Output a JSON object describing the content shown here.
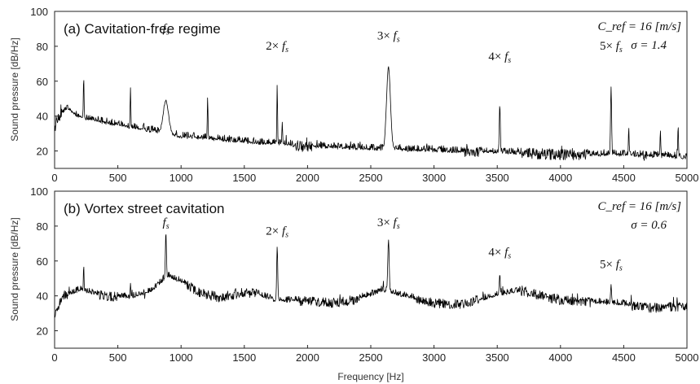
{
  "chart_data": [
    {
      "type": "line",
      "title": "(a) Cavitation-free regime",
      "xlabel": "",
      "ylabel": "Sound pressure [dB/Hz]",
      "xlim": [
        0,
        5000
      ],
      "ylim": [
        10,
        100
      ],
      "xticks": [
        0,
        500,
        1000,
        1500,
        2000,
        2500,
        3000,
        3500,
        4000,
        4500,
        5000
      ],
      "yticks": [
        20,
        40,
        60,
        80,
        100
      ],
      "grid": false,
      "legend": "none",
      "params": {
        "velocity": "C_ref = 16 [m/s]",
        "sigma": "σ = 1.4"
      },
      "annotations": [
        {
          "text": "f_s",
          "x": 880,
          "y": 88
        },
        {
          "text": "2× f_s",
          "x": 1760,
          "y": 78
        },
        {
          "text": "3× f_s",
          "x": 2640,
          "y": 84
        },
        {
          "text": "4× f_s",
          "x": 3520,
          "y": 72
        },
        {
          "text": "5× f_s",
          "x": 4400,
          "y": 78
        }
      ],
      "series": [
        {
          "color": "#000000",
          "baseline": [
            [
              0,
              33
            ],
            [
              40,
              40
            ],
            [
              100,
              44
            ],
            [
              200,
              39
            ],
            [
              400,
              36
            ],
            [
              600,
              33
            ],
            [
              800,
              31
            ],
            [
              1000,
              28
            ],
            [
              1500,
              25
            ],
            [
              2000,
              22.5
            ],
            [
              2500,
              21
            ],
            [
              3000,
              20
            ],
            [
              3500,
              19
            ],
            [
              4000,
              18
            ],
            [
              4500,
              17.5
            ],
            [
              5000,
              16
            ]
          ],
          "peaks": [
            {
              "x": 880,
              "y": 49,
              "width": 30
            },
            {
              "x": 1760,
              "y": 58,
              "width": 4
            },
            {
              "x": 2640,
              "y": 68,
              "width": 22
            },
            {
              "x": 3520,
              "y": 47,
              "width": 6
            },
            {
              "x": 4400,
              "y": 56,
              "width": 6
            },
            {
              "x": 230,
              "y": 62,
              "width": 4
            },
            {
              "x": 600,
              "y": 56,
              "width": 4
            },
            {
              "x": 1210,
              "y": 51,
              "width": 4
            },
            {
              "x": 1800,
              "y": 37,
              "width": 4
            },
            {
              "x": 4540,
              "y": 34,
              "width": 4
            },
            {
              "x": 4790,
              "y": 32,
              "width": 4
            },
            {
              "x": 4930,
              "y": 35,
              "width": 4
            }
          ],
          "noise_amplitude": 3.2
        }
      ]
    },
    {
      "type": "line",
      "title": "(b) Vortex street cavitation",
      "xlabel": "Frequency [Hz]",
      "ylabel": "Sound pressure [dB/Hz]",
      "xlim": [
        0,
        5000
      ],
      "ylim": [
        10,
        100
      ],
      "xticks": [
        0,
        500,
        1000,
        1500,
        2000,
        2500,
        3000,
        3500,
        4000,
        4500,
        5000
      ],
      "yticks": [
        20,
        40,
        60,
        80,
        100
      ],
      "grid": false,
      "legend": "none",
      "params": {
        "velocity": "C_ref = 16 [m/s]",
        "sigma": "σ = 0.6"
      },
      "annotations": [
        {
          "text": "f_s",
          "x": 880,
          "y": 80
        },
        {
          "text": "2× f_s",
          "x": 1760,
          "y": 75
        },
        {
          "text": "3× f_s",
          "x": 2640,
          "y": 80
        },
        {
          "text": "4× f_s",
          "x": 3520,
          "y": 63
        },
        {
          "text": "5× f_s",
          "x": 4400,
          "y": 56
        }
      ],
      "series": [
        {
          "color": "#000000",
          "baseline": [
            [
              0,
              28
            ],
            [
              60,
              40
            ],
            [
              200,
              43
            ],
            [
              400,
              40
            ],
            [
              600,
              39
            ],
            [
              750,
              42
            ],
            [
              900,
              51
            ],
            [
              1000,
              48
            ],
            [
              1150,
              42
            ],
            [
              1300,
              39
            ],
            [
              1500,
              42
            ],
            [
              1600,
              41
            ],
            [
              1750,
              37
            ],
            [
              2000,
              37
            ],
            [
              2200,
              36
            ],
            [
              2400,
              38
            ],
            [
              2600,
              43
            ],
            [
              2750,
              40
            ],
            [
              3000,
              36
            ],
            [
              3200,
              35
            ],
            [
              3500,
              40
            ],
            [
              3700,
              43
            ],
            [
              3900,
              39
            ],
            [
              4100,
              37
            ],
            [
              4300,
              36
            ],
            [
              4500,
              35
            ],
            [
              4700,
              33
            ],
            [
              5000,
              34
            ]
          ],
          "peaks": [
            {
              "x": 880,
              "y": 76,
              "width": 6
            },
            {
              "x": 1760,
              "y": 68,
              "width": 6
            },
            {
              "x": 2640,
              "y": 72,
              "width": 8
            },
            {
              "x": 3520,
              "y": 52,
              "width": 6
            },
            {
              "x": 4400,
              "y": 46,
              "width": 6
            },
            {
              "x": 230,
              "y": 58,
              "width": 4
            },
            {
              "x": 600,
              "y": 48,
              "width": 4
            }
          ],
          "noise_amplitude": 2.8
        }
      ]
    }
  ]
}
